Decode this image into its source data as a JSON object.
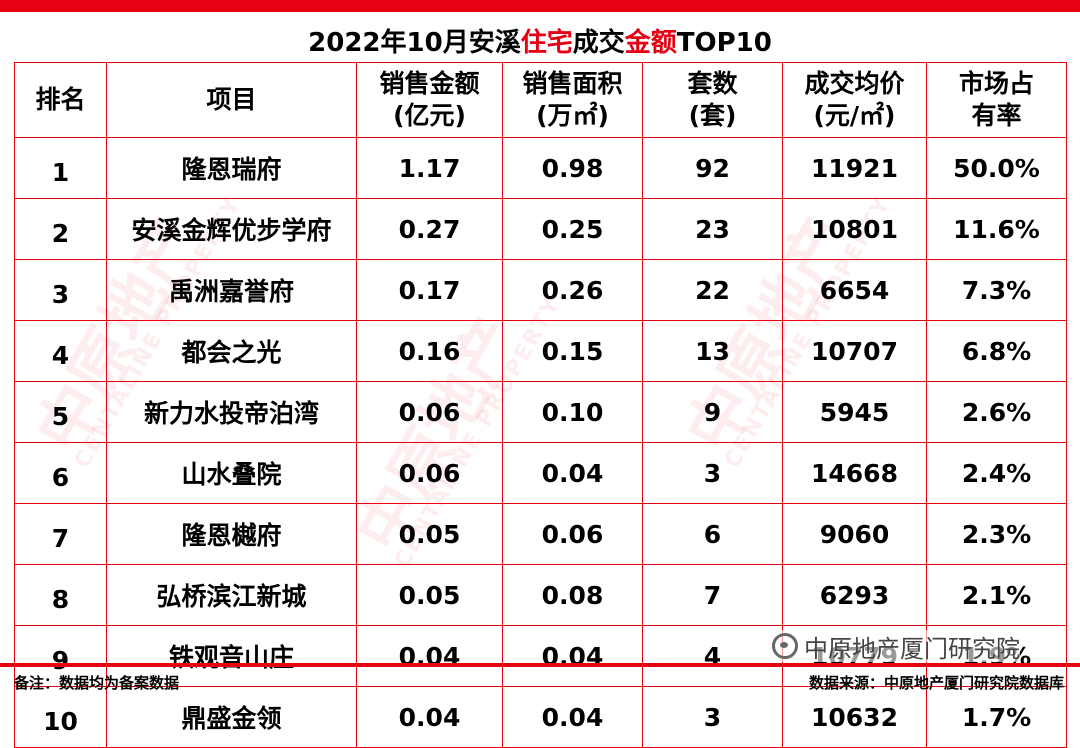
{
  "title": {
    "part1": "2022年10月安溪",
    "highlight1": "住宅",
    "part2": "成交",
    "highlight2": "金额",
    "part3": "TOP10"
  },
  "chart_data": {
    "type": "table",
    "columns": [
      [
        "排名"
      ],
      [
        "项目"
      ],
      [
        "销售金额",
        "(亿元)"
      ],
      [
        "销售面积",
        "(万㎡)"
      ],
      [
        "套数",
        "(套)"
      ],
      [
        "成交均价",
        "(元/㎡)"
      ],
      [
        "市场占",
        "有率"
      ]
    ],
    "rows": [
      [
        "1",
        "隆恩瑞府",
        "1.17",
        "0.98",
        "92",
        "11921",
        "50.0%"
      ],
      [
        "2",
        "安溪金辉优步学府",
        "0.27",
        "0.25",
        "23",
        "10801",
        "11.6%"
      ],
      [
        "3",
        "禹洲嘉誉府",
        "0.17",
        "0.26",
        "22",
        "6654",
        "7.3%"
      ],
      [
        "4",
        "都会之光",
        "0.16",
        "0.15",
        "13",
        "10707",
        "6.8%"
      ],
      [
        "5",
        "新力水投帝泊湾",
        "0.06",
        "0.10",
        "9",
        "5945",
        "2.6%"
      ],
      [
        "6",
        "山水叠院",
        "0.06",
        "0.04",
        "3",
        "14668",
        "2.4%"
      ],
      [
        "7",
        "隆恩樾府",
        "0.05",
        "0.06",
        "6",
        "9060",
        "2.3%"
      ],
      [
        "8",
        "弘桥滨江新城",
        "0.05",
        "0.08",
        "7",
        "6293",
        "2.1%"
      ],
      [
        "9",
        "铁观音山庄",
        "0.04",
        "0.04",
        "4",
        "10779",
        "1.9%"
      ],
      [
        "10",
        "鼎盛金领",
        "0.04",
        "0.04",
        "3",
        "10632",
        "1.7%"
      ]
    ]
  },
  "footer": {
    "note": "备注：数据均为备案数据",
    "source": "数据来源：中原地产厦门研究院数据库"
  },
  "wechat": {
    "label": "中原地产厦门研究院",
    "icon": "wechat-icon"
  },
  "watermark": {
    "text": "中原地产",
    "sub": "CENTALINE PROPERTY"
  },
  "colors": {
    "accent": "#e60012"
  }
}
